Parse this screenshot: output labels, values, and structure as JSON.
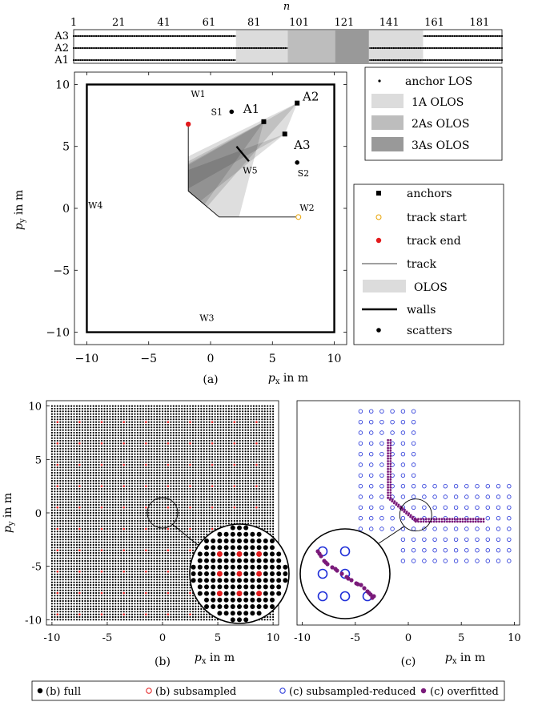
{
  "chart_data": [
    {
      "type": "timeline",
      "xlabel": "n",
      "xticks": [
        1,
        21,
        41,
        61,
        81,
        101,
        121,
        141,
        161,
        181
      ],
      "xlim": [
        1,
        191
      ],
      "rows": [
        "A3",
        "A2",
        "A1"
      ],
      "olos_segments": [
        {
          "start": 73,
          "end": 96,
          "level": 1
        },
        {
          "start": 96,
          "end": 117,
          "level": 2
        },
        {
          "start": 117,
          "end": 132,
          "level": 3
        },
        {
          "start": 132,
          "end": 156,
          "level": 1
        }
      ],
      "row_olos": {
        "A3": [
          73,
          156
        ],
        "A2": [
          96,
          132
        ],
        "A1": [
          73,
          132
        ]
      }
    },
    {
      "type": "scatter",
      "label": "(a)",
      "xlabel": "p_x in m",
      "ylabel": "p_y in m",
      "xlim": [
        -11,
        11
      ],
      "ylim": [
        -11,
        11
      ],
      "xticks": [
        -10,
        -5,
        0,
        5,
        10
      ],
      "yticks": [
        -10,
        -5,
        0,
        5,
        10
      ],
      "walls": {
        "W1": [
          -1,
          9.0
        ],
        "W2": [
          7.8,
          -0.2
        ],
        "W3": [
          -0.3,
          -9.1
        ],
        "W4": [
          -9.3,
          0
        ],
        "W5": [
          3.2,
          2.8
        ]
      },
      "anchors": [
        {
          "name": "A1",
          "x": 4.3,
          "y": 7.0,
          "label_at": [
            3.3,
            7.7
          ]
        },
        {
          "name": "A2",
          "x": 7.0,
          "y": 8.5,
          "label_at": [
            8.1,
            8.7
          ]
        },
        {
          "name": "A3",
          "x": 6.0,
          "y": 6.0,
          "label_at": [
            7.4,
            4.8
          ]
        }
      ],
      "scatters": [
        {
          "name": "S1",
          "x": 1.7,
          "y": 7.8
        },
        {
          "name": "S2",
          "x": 7.0,
          "y": 3.7
        }
      ],
      "track": [
        [
          -1.8,
          6.8
        ],
        [
          -1.8,
          1.4
        ],
        [
          0.7,
          -0.7
        ],
        [
          7.1,
          -0.7
        ]
      ],
      "track_start": [
        7.1,
        -0.7
      ],
      "track_end": [
        -1.8,
        6.8
      ],
      "legend1": [
        "anchor LOS",
        "1A OLOS",
        "2As OLOS",
        "3As OLOS"
      ],
      "legend2": [
        "anchors",
        "track start",
        "track end",
        "track",
        "OLOS",
        "walls",
        "scatters"
      ]
    },
    {
      "type": "scatter",
      "label": "(b)",
      "xlabel": "p_x in m",
      "ylabel": "p_y in m",
      "xlim": [
        -10.5,
        10.5
      ],
      "ylim": [
        -10.5,
        10.5
      ],
      "xticks": [
        -10,
        -5,
        0,
        5,
        10
      ],
      "yticks": [
        -10,
        -5,
        0,
        5,
        10
      ],
      "full_grid_spacing": 0.25,
      "subsampled_spacing": 1
    },
    {
      "type": "scatter",
      "label": "(c)",
      "xlabel": "p_x in m",
      "xlim": [
        -10.5,
        10.5
      ],
      "ylim": [
        -10.5,
        10.5
      ],
      "xticks": [
        -10,
        -5,
        0,
        5,
        10
      ],
      "reduced_spacing": 1,
      "overfitted_path": [
        [
          -1.8,
          6.8
        ],
        [
          -1.8,
          1.4
        ],
        [
          0.7,
          -0.7
        ],
        [
          7.1,
          -0.7
        ]
      ]
    }
  ],
  "labels": {
    "n_axis": "n",
    "rows": [
      "A3",
      "A2",
      "A1"
    ],
    "a_label": "(a)",
    "b_label": "(b)",
    "c_label": "(c)",
    "px_label": "p",
    "px_sub": "x",
    "py_label": "p",
    "py_sub": "y",
    "unit": " in m",
    "legend1": [
      "anchor LOS",
      "1A OLOS",
      "2As OLOS",
      "3As OLOS"
    ],
    "legend2": [
      "anchors",
      "track start",
      "track end",
      "track",
      "OLOS",
      "walls",
      "scatters"
    ],
    "walls": [
      "W1",
      "W2",
      "W3",
      "W4",
      "W5"
    ],
    "anchors": [
      "A1",
      "A2",
      "A3"
    ],
    "scatters": [
      "S1",
      "S2"
    ],
    "bottom_legend": [
      "(b) full",
      "(b) subsampled",
      "(c) subsampled-reduced",
      "(c) overfitted"
    ]
  }
}
